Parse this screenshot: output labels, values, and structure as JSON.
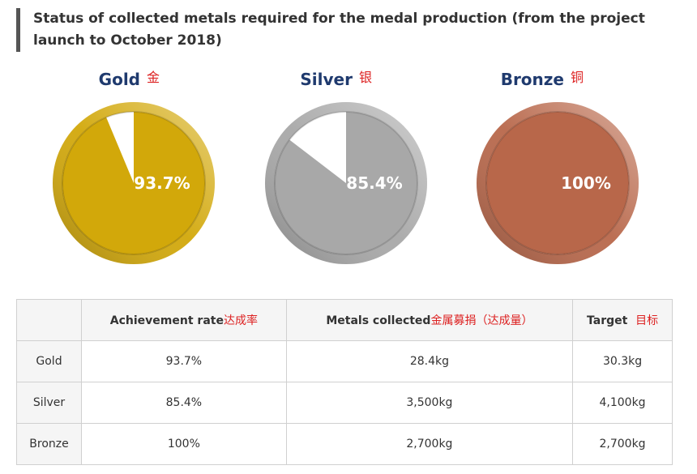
{
  "title": "Status of collected metals required for the medal production (from the project launch to October 2018)",
  "chart_data": [
    {
      "type": "pie",
      "title": "Gold",
      "annotation": "金",
      "values": [
        93.7
      ],
      "value_labels": [
        "93.7%"
      ],
      "color": "#d2a80a"
    },
    {
      "type": "pie",
      "title": "Silver",
      "annotation": "银",
      "values": [
        85.4
      ],
      "value_labels": [
        "85.4%"
      ],
      "color": "#a8a8a8"
    },
    {
      "type": "pie",
      "title": "Bronze",
      "annotation": "铜",
      "values": [
        100
      ],
      "value_labels": [
        "100%"
      ],
      "color": "#b8674a"
    }
  ],
  "table": {
    "header": [
      {
        "text": "Achievement rate",
        "note": "达成率"
      },
      {
        "text": "Metals collected",
        "note": "金属募捐（达成量）"
      },
      {
        "text": "Target",
        "note": "目标"
      }
    ],
    "rows": [
      [
        "Gold",
        "93.7%",
        "28.4kg",
        "30.3kg"
      ],
      [
        "Silver",
        "85.4%",
        "3,500kg",
        "4,100kg"
      ],
      [
        "Bronze",
        "100%",
        "2,700kg",
        "2,700kg"
      ]
    ]
  }
}
